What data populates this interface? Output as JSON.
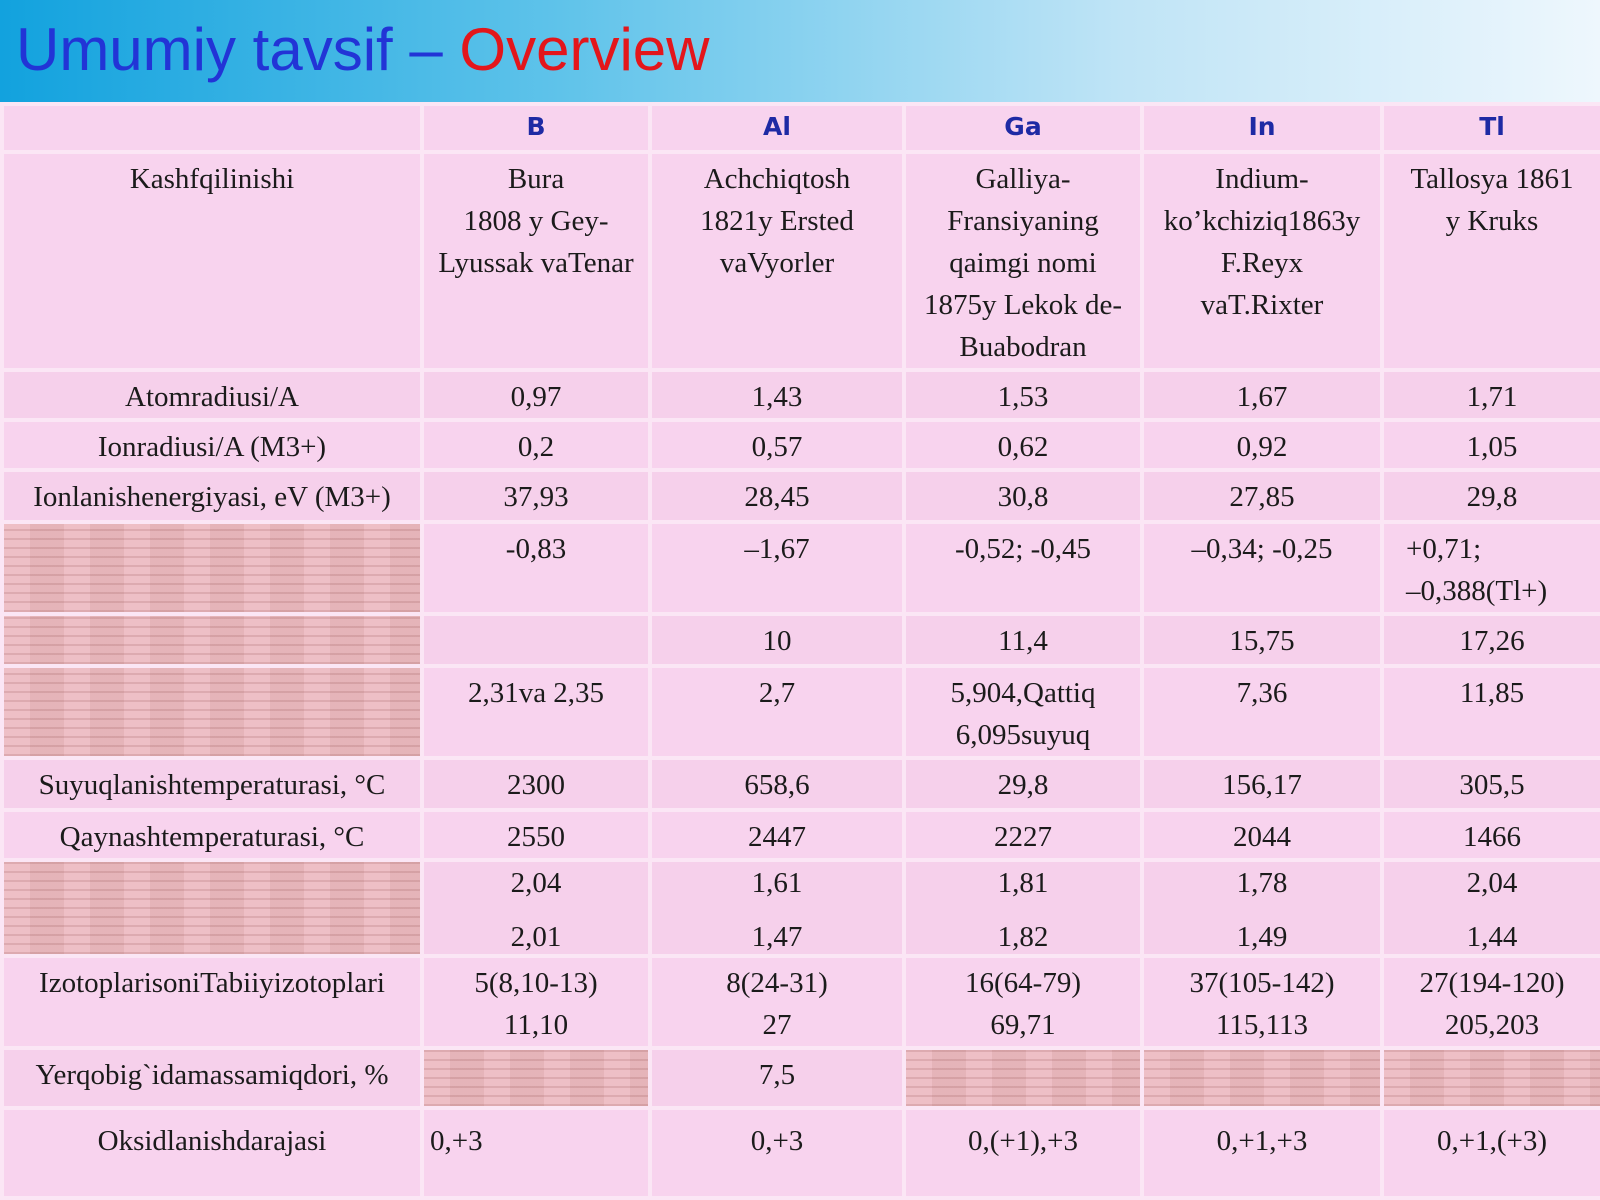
{
  "slide": {
    "title_part1": "Umumiy tavsif – ",
    "title_part2": "Overview"
  },
  "colors": {
    "title_blue": "#2234d6",
    "title_red": "#e3161b",
    "header_text": "#1e2aa4",
    "table_bg": "#f8d3ee"
  },
  "table": {
    "headers": [
      "",
      "B",
      "Al",
      "Ga",
      "In",
      "Tl"
    ],
    "rows": [
      {
        "label": "Kashfqilinishi",
        "cells": [
          "Bura\n1808 y Gey-\nLyussak vaTenar",
          "Achchiqtosh\n1821y Ersted\nvaVyorler",
          "Galliya-\nFransiyaning\nqaimgi nomi\n1875y Lekok de-\nBuabodran",
          "Indium-\nko’kchiziq1863y\nF.Reyx\nvaT.Rixter",
          "Tallosya 1861\ny Kruks"
        ]
      },
      {
        "label": "Atomradiusi/A",
        "cells": [
          "0,97",
          "1,43",
          "1,53",
          "1,67",
          "1,71"
        ]
      },
      {
        "label": "Ionradiusi/A (M3+)",
        "cells": [
          "0,2",
          "0,57",
          "0,62",
          "0,92",
          "1,05"
        ]
      },
      {
        "label": "Ionlanishenergiyasi, eV (M3+)",
        "cells": [
          "37,93",
          "28,45",
          "30,8",
          "27,85",
          "29,8"
        ]
      },
      {
        "label": "",
        "cells": [
          "-0,83",
          "–1,67",
          "-0,52; -0,45",
          "–0,34; -0,25",
          "+0,71;\n–0,388(Tl+)"
        ]
      },
      {
        "label": "",
        "cells": [
          "",
          "10",
          "11,4",
          "15,75",
          "17,26"
        ]
      },
      {
        "label": "",
        "cells": [
          "2,31va 2,35",
          "2,7",
          "5,904,Qattiq\n6,095suyuq",
          "7,36",
          "11,85"
        ]
      },
      {
        "label": "Suyuqlanishtemperaturasi, °C",
        "cells": [
          "2300",
          "658,6",
          "29,8",
          "156,17",
          "305,5"
        ]
      },
      {
        "label": "Qaynashtemperaturasi, °C",
        "cells": [
          "2550",
          "2447",
          "2227",
          "2044",
          "1466"
        ]
      },
      {
        "label": "",
        "cells": [
          "2,04\n\n2,01",
          "1,61\n\n1,47",
          "1,81\n\n1,82",
          "1,78\n\n1,49",
          "2,04\n\n1,44"
        ]
      },
      {
        "label": "IzotoplarisoniTabiiyizotoplari",
        "cells": [
          "5(8,10-13)\n11,10",
          "8(24-31)\n27",
          "16(64-79)\n69,71",
          "37(105-142)\n115,113",
          "27(194-120)\n205,203"
        ]
      },
      {
        "label": "Yerqobig`idamassamiqdori, %",
        "cells": [
          "",
          "7,5",
          "",
          "",
          ""
        ]
      },
      {
        "label": "Oksidlanishdarajasi",
        "cells": [
          "0,+3",
          "0,+3",
          "0,(+1),+3",
          "0,+1,+3",
          "0,+1,(+3)"
        ]
      }
    ]
  }
}
